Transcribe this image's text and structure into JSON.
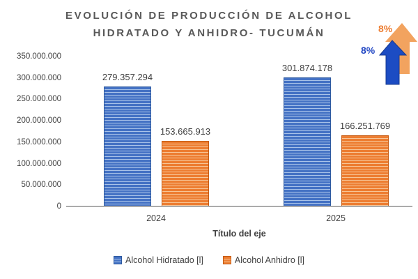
{
  "title": {
    "line1": "EVOLUCIÓN DE PRODUCCIÓN DE ALCOHOL",
    "line2": "HIDRATADO Y ANHIDRO- TUCUMÁN"
  },
  "chart_data": {
    "type": "bar",
    "title": "EVOLUCIÓN DE PRODUCCIÓN DE ALCOHOL HIDRATADO Y ANHIDRO- TUCUMÁN",
    "categories": [
      "2024",
      "2025"
    ],
    "series": [
      {
        "name": "Alcohol Hidratado [l]",
        "values": [
          279357294,
          301874178
        ],
        "data_labels": [
          "279.357.294",
          "301.874.178"
        ],
        "color": "#4472C4",
        "stripe_color": "#A9C3E9",
        "border_color": "#2E5AA0"
      },
      {
        "name": "Alcohol Anhidro [l]",
        "values": [
          153665913,
          166251769
        ],
        "data_labels": [
          "153.665.913",
          "166.251.769"
        ],
        "color": "#ED7D31",
        "stripe_color": "#F7C596",
        "border_color": "#C55A11"
      }
    ],
    "xlabel": "Título del eje",
    "ylabel": "",
    "ylim": [
      0,
      350000000
    ],
    "ytick_labels": [
      "350.000.000",
      "300.000.000",
      "250.000.000",
      "200.000.000",
      "150.000.000",
      "100.000.000",
      "50.000.000",
      "0"
    ],
    "gridlines": false,
    "legend_position": "bottom"
  },
  "annotations": {
    "hidratado_growth": {
      "label": "8%",
      "color": "#2247C4"
    },
    "anhidro_growth": {
      "label": "8%",
      "color": "#ED7D31"
    }
  },
  "colors": {
    "title_text": "#595959",
    "axis_text": "#404040",
    "axis_line": "#A6A6A6",
    "arrow_blue": "#1C4CC3",
    "arrow_blue_edge": "#16398F",
    "arrow_orange": "#F2A35F",
    "background": "#FFFFFF"
  }
}
